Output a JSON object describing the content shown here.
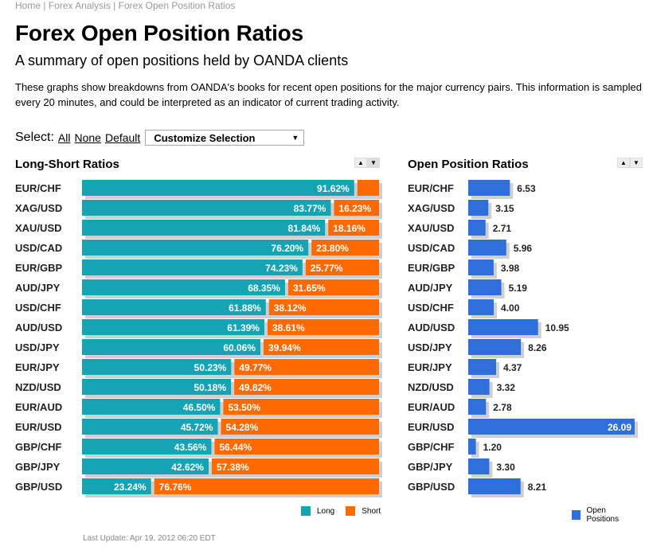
{
  "breadcrumb": [
    "Home",
    "Forex Analysis",
    "Forex Open Position Ratios"
  ],
  "title": "Forex Open Position Ratios",
  "subtitle": "A summary of open positions held by OANDA clients",
  "description": "These graphs show breakdowns from OANDA's books for recent open positions for the major currency pairs. This information is sampled every 20 minutes, and could be interpreted as an indicator of current trading activity.",
  "select": {
    "label": "Select:",
    "all": "All",
    "none": "None",
    "default": "Default",
    "dropdown": "Customize Selection"
  },
  "colors": {
    "long": "#16a3b4",
    "short": "#ff6a00",
    "open": "#2f6fdb",
    "shadow": "#cfcfcf"
  },
  "icons": {
    "sort_up": "triangle-up-icon",
    "sort_down": "triangle-down-icon"
  },
  "last_update": "Last Update: Apr 19, 2012 06:20 EDT",
  "chart_data": [
    {
      "type": "bar",
      "title": "Long-Short Ratios",
      "categories": [
        "EUR/CHF",
        "XAG/USD",
        "XAU/USD",
        "USD/CAD",
        "EUR/GBP",
        "AUD/JPY",
        "USD/CHF",
        "AUD/USD",
        "USD/JPY",
        "EUR/JPY",
        "NZD/USD",
        "EUR/AUD",
        "EUR/USD",
        "GBP/CHF",
        "GBP/JPY",
        "GBP/USD"
      ],
      "series": [
        {
          "name": "Long",
          "values": [
            91.62,
            83.77,
            81.84,
            76.2,
            74.23,
            68.35,
            61.88,
            61.39,
            60.06,
            50.23,
            50.18,
            46.5,
            45.72,
            43.56,
            42.62,
            23.24
          ]
        },
        {
          "name": "Short",
          "values": [
            8.38,
            16.23,
            18.16,
            23.8,
            25.77,
            31.65,
            38.12,
            38.61,
            39.94,
            49.77,
            49.82,
            53.5,
            54.28,
            56.44,
            57.38,
            76.76
          ]
        }
      ],
      "labels_long": [
        "91.62%",
        "83.77%",
        "81.84%",
        "76.20%",
        "74.23%",
        "68.35%",
        "61.88%",
        "61.39%",
        "60.06%",
        "50.23%",
        "50.18%",
        "46.50%",
        "45.72%",
        "43.56%",
        "42.62%",
        "23.24%"
      ],
      "labels_short": [
        "",
        "16.23%",
        "18.16%",
        "23.80%",
        "25.77%",
        "31.65%",
        "38.12%",
        "38.61%",
        "39.94%",
        "49.77%",
        "49.82%",
        "53.50%",
        "54.28%",
        "56.44%",
        "57.38%",
        "76.76%"
      ],
      "stacked": true,
      "orientation": "horizontal",
      "legend": {
        "position": "bottom-right",
        "entries": [
          "Long",
          "Short"
        ]
      }
    },
    {
      "type": "bar",
      "title": "Open Position Ratios",
      "categories": [
        "EUR/CHF",
        "XAG/USD",
        "XAU/USD",
        "USD/CAD",
        "EUR/GBP",
        "AUD/JPY",
        "USD/CHF",
        "AUD/USD",
        "USD/JPY",
        "EUR/JPY",
        "NZD/USD",
        "EUR/AUD",
        "EUR/USD",
        "GBP/CHF",
        "GBP/JPY",
        "GBP/USD"
      ],
      "series": [
        {
          "name": "Open Positions",
          "values": [
            6.53,
            3.15,
            2.71,
            5.96,
            3.98,
            5.19,
            4.0,
            10.95,
            8.26,
            4.37,
            3.32,
            2.78,
            26.09,
            1.2,
            3.3,
            8.21
          ]
        }
      ],
      "labels": [
        "6.53",
        "3.15",
        "2.71",
        "5.96",
        "3.98",
        "5.19",
        "4.00",
        "10.95",
        "8.26",
        "4.37",
        "3.32",
        "2.78",
        "26.09",
        "1.20",
        "3.30",
        "8.21"
      ],
      "orientation": "horizontal",
      "legend": {
        "position": "bottom-right",
        "entries": [
          "Open Positions"
        ]
      }
    }
  ]
}
